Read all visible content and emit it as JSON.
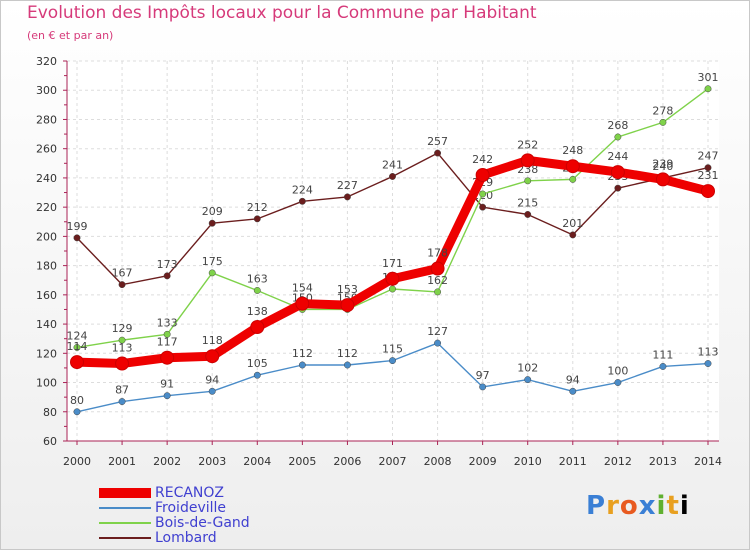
{
  "chart_data": {
    "type": "line",
    "title": "Evolution des Impôts locaux pour la Commune par Habitant",
    "subtitle": "(en € et par an)",
    "xlabel": "",
    "ylabel": "",
    "x": [
      "2000",
      "2001",
      "2002",
      "2003",
      "2004",
      "2005",
      "2006",
      "2007",
      "2008",
      "2009",
      "2010",
      "2011",
      "2012",
      "2013",
      "2014"
    ],
    "ylim": [
      60,
      320
    ],
    "yticks": [
      60,
      80,
      100,
      120,
      140,
      160,
      180,
      200,
      220,
      240,
      260,
      280,
      300,
      320
    ],
    "grid": true,
    "series": [
      {
        "name": "Lombard",
        "color": "#6b1e1e",
        "values": [
          199,
          167,
          173,
          209,
          212,
          224,
          227,
          241,
          257,
          220,
          215,
          201,
          233,
          240,
          247
        ]
      },
      {
        "name": "Bois-de-Gand",
        "color": "#7fd24a",
        "values": [
          124,
          129,
          133,
          175,
          163,
          150,
          150,
          164,
          162,
          229,
          238,
          239,
          268,
          278,
          301
        ]
      },
      {
        "name": "Froideville",
        "color": "#4a8cc8",
        "values": [
          80,
          87,
          91,
          94,
          105,
          112,
          112,
          115,
          127,
          97,
          102,
          94,
          100,
          111,
          113
        ]
      },
      {
        "name": "RECANOZ",
        "color": "#ee0000",
        "values": [
          114,
          113,
          117,
          118,
          138,
          154,
          153,
          171,
          178,
          242,
          252,
          248,
          244,
          239,
          231
        ]
      }
    ]
  },
  "legend": [
    {
      "name": "RECANOZ",
      "color": "#ee0000"
    },
    {
      "name": "Froideville",
      "color": "#4a8cc8"
    },
    {
      "name": "Bois-de-Gand",
      "color": "#7fd24a"
    },
    {
      "name": "Lombard",
      "color": "#6b1e1e"
    }
  ],
  "brand": [
    "P",
    "r",
    "o",
    "x",
    "i",
    "t",
    "i"
  ]
}
